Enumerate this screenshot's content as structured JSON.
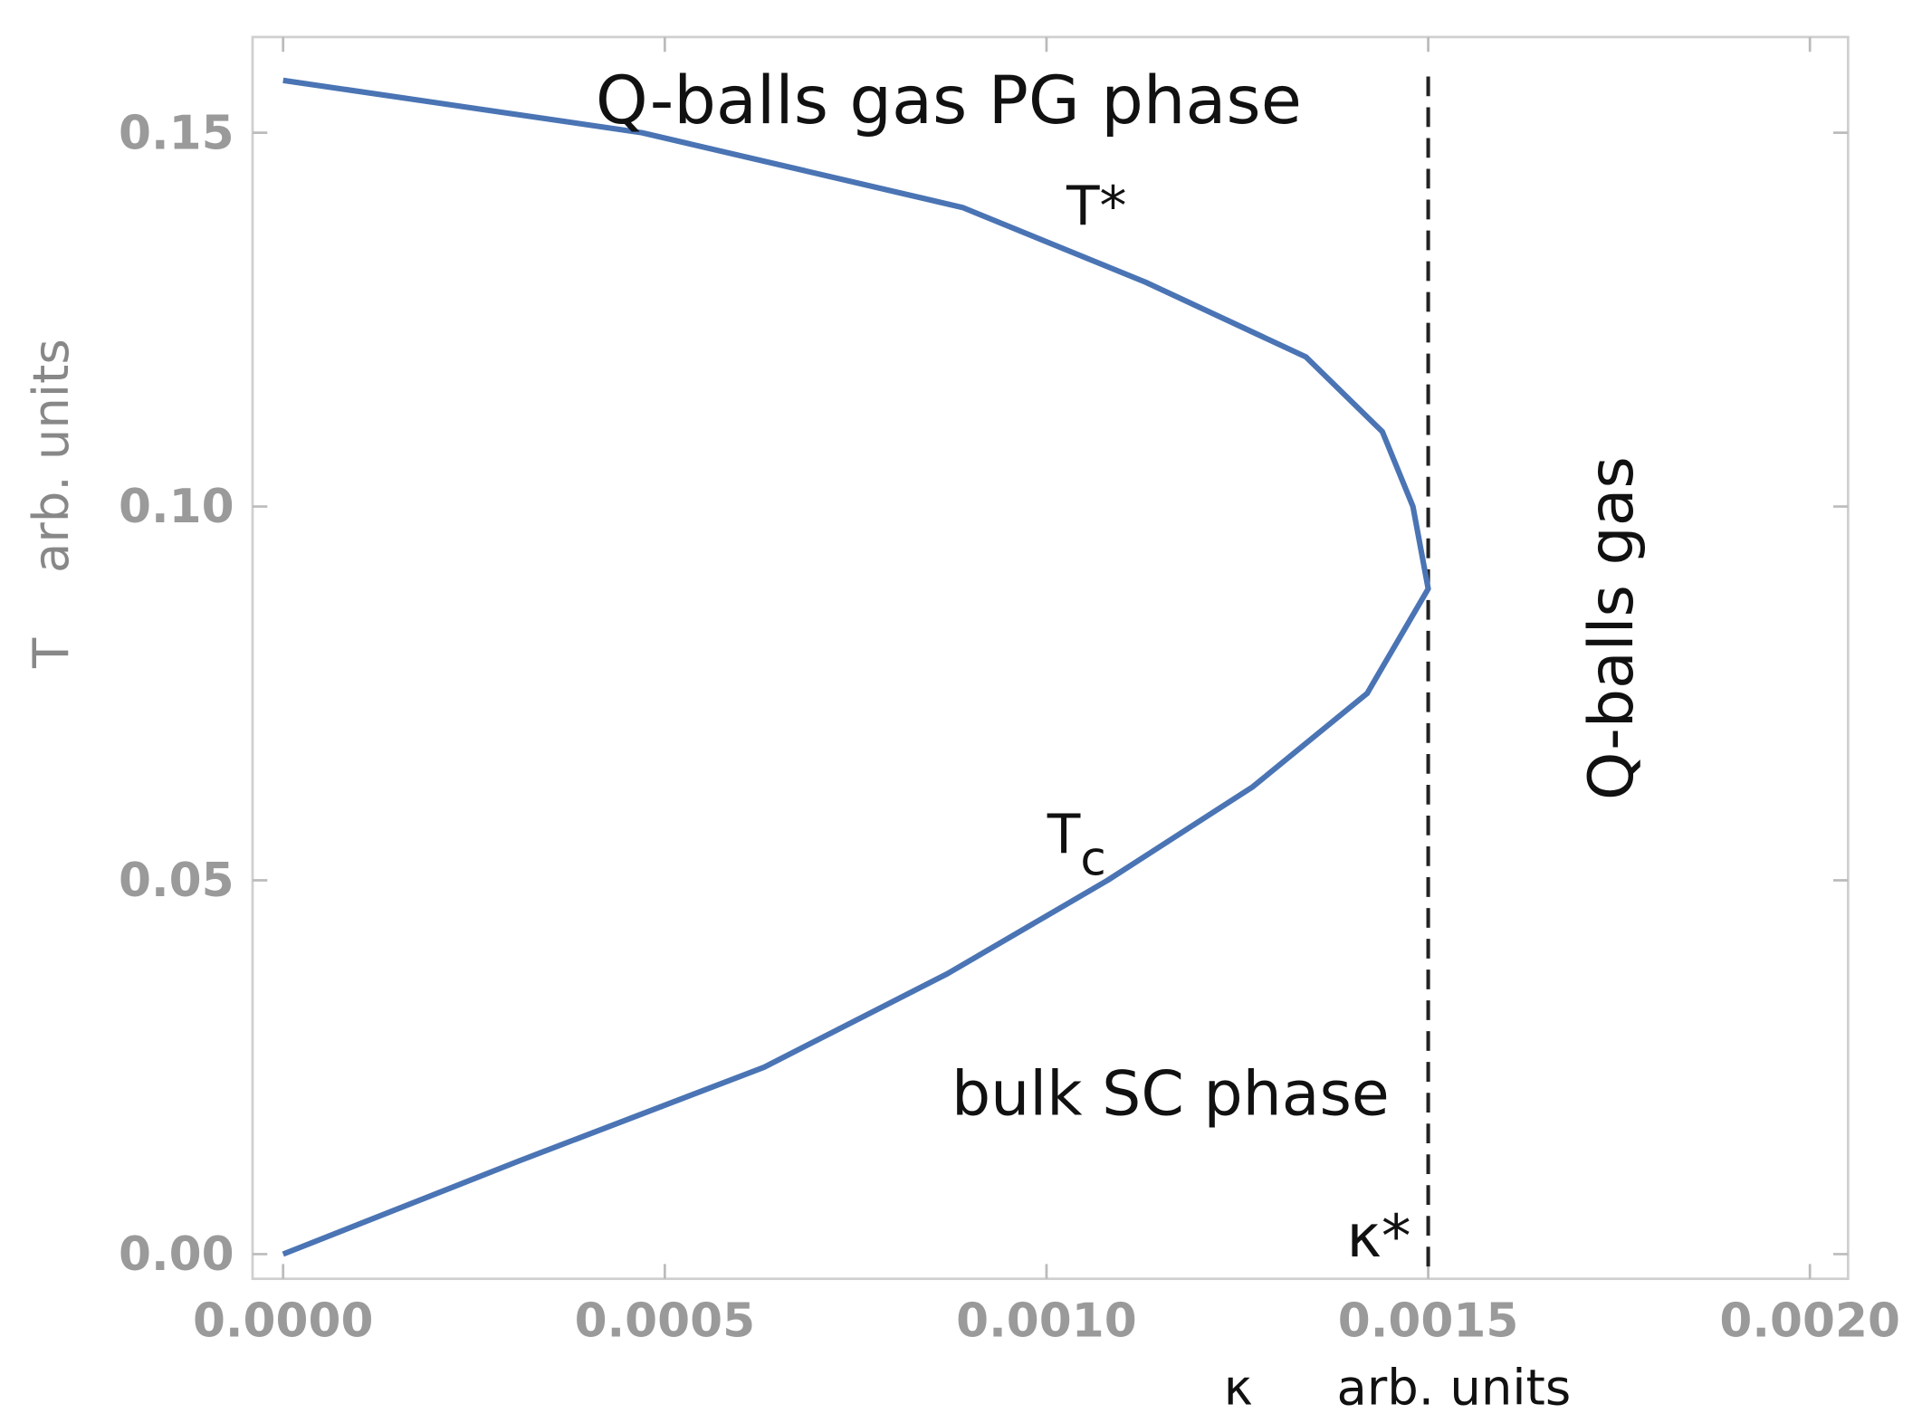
{
  "chart_data": {
    "type": "line",
    "x_label": "κ",
    "x_unit": "arb. units",
    "y_label": "T",
    "y_unit": "arb. units",
    "xlim": [
      -4e-05,
      0.00205
    ],
    "ylim": [
      -0.0033,
      0.1628
    ],
    "xticks": [
      {
        "value": 0,
        "label": "0.0000"
      },
      {
        "value": 0.0005,
        "label": "0.0005"
      },
      {
        "value": 0.001,
        "label": "0.0010"
      },
      {
        "value": 0.0015,
        "label": "0.0015"
      },
      {
        "value": 0.002,
        "label": "0.0020"
      }
    ],
    "yticks": [
      {
        "value": 0,
        "label": "0.00"
      },
      {
        "value": 0.05,
        "label": "0.05"
      },
      {
        "value": 0.1,
        "label": "0.10"
      },
      {
        "value": 0.15,
        "label": "0.15"
      }
    ],
    "series": [
      {
        "color": "#4a74b4",
        "x": [
          0,
          0.00031,
          0.00063,
          0.00087,
          0.00108,
          0.00127,
          0.00142,
          0.0015,
          0.00148,
          0.00144,
          0.00134,
          0.00113,
          0.00089,
          0.00047,
          0
        ],
        "values": [
          0,
          0.0125,
          0.025,
          0.0375,
          0.05,
          0.0625,
          0.075,
          0.089,
          0.1,
          0.11,
          0.12,
          0.13,
          0.14,
          0.15,
          0.157
        ]
      }
    ],
    "vline": {
      "x": 0.0015,
      "label": "κ*"
    },
    "annotations": [
      {
        "text": "Q-balls gas PG phase"
      },
      {
        "text": "T*"
      },
      {
        "text": "T",
        "sub": "c"
      },
      {
        "text": "bulk SC phase"
      },
      {
        "text": "Q-balls gas"
      }
    ]
  }
}
